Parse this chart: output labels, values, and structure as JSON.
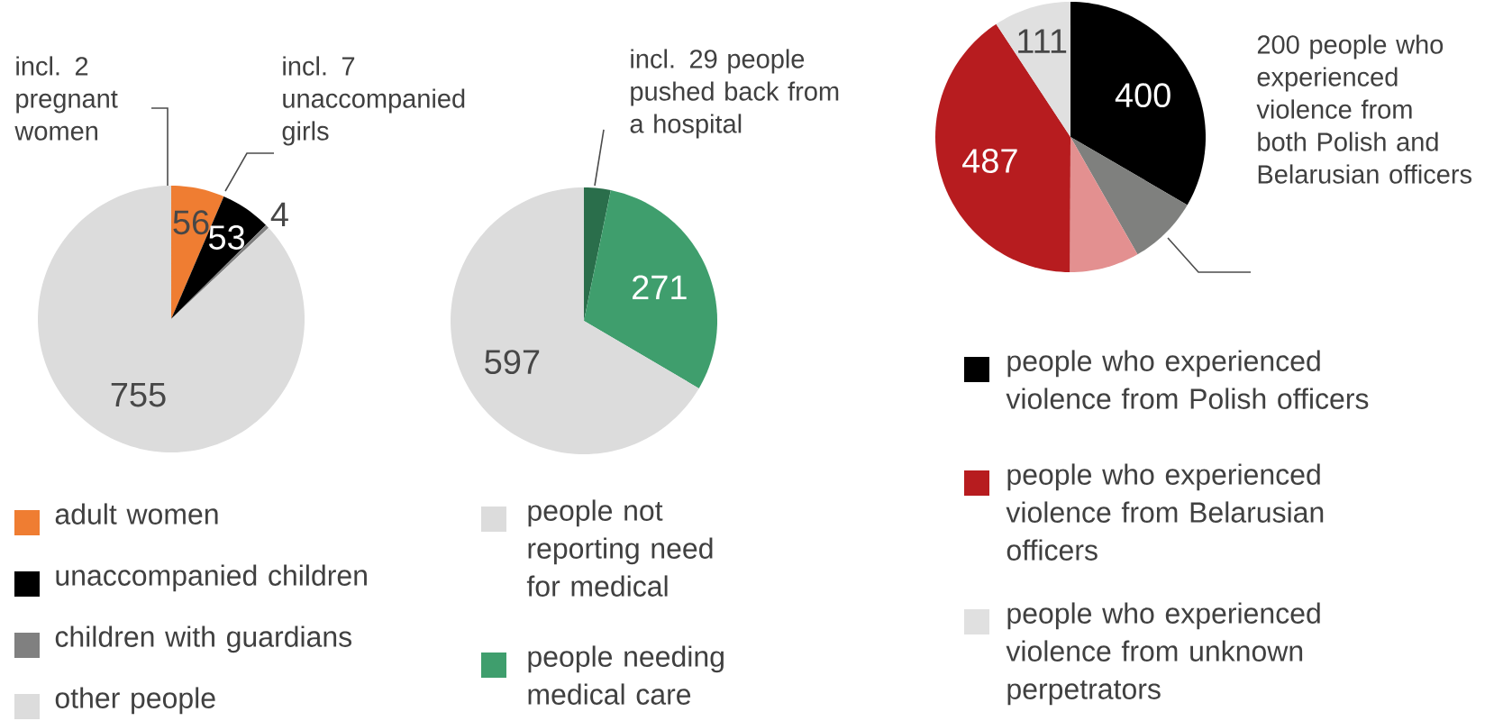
{
  "chart_data": [
    {
      "type": "pie",
      "categories": [
        "adult women",
        "unaccompanied children",
        "children with guardians",
        "other people"
      ],
      "values": [
        56,
        53,
        4,
        755
      ],
      "colors": [
        "#ef7d32",
        "#000000",
        "#808080",
        "#dcdcdc"
      ],
      "data_labels": true,
      "legend": "bottom",
      "annotations": [
        "incl. 2 pregnant women",
        "incl. 7 unaccompanied girls"
      ]
    },
    {
      "type": "pie",
      "categories": [
        null,
        "people needing medical care",
        "people not reporting need for medical"
      ],
      "values": [
        29,
        271,
        597
      ],
      "value_labels": [
        null,
        "271",
        "597"
      ],
      "colors": [
        "#2a6e4b",
        "#3f9e6d",
        "#dcdcdc"
      ],
      "legend": "bottom",
      "annotations": [
        "incl. 29 people pushed back from a hospital"
      ]
    },
    {
      "type": "pie",
      "categories": [
        "people who experienced violence from Polish officers",
        null,
        null,
        "people who experienced violence from Belarusian officers",
        "people who experienced violence from unknown perpetrators"
      ],
      "values": [
        400,
        100,
        100,
        487,
        111
      ],
      "value_labels": [
        "400",
        null,
        null,
        "487",
        "111"
      ],
      "colors": [
        "#000000",
        "#7f807e",
        "#e39090",
        "#b71c1f",
        "#e0e0e0"
      ],
      "legend": "bottom",
      "annotations": [
        "200 people who experienced violence from both Polish and Belarusian officers"
      ]
    }
  ]
}
